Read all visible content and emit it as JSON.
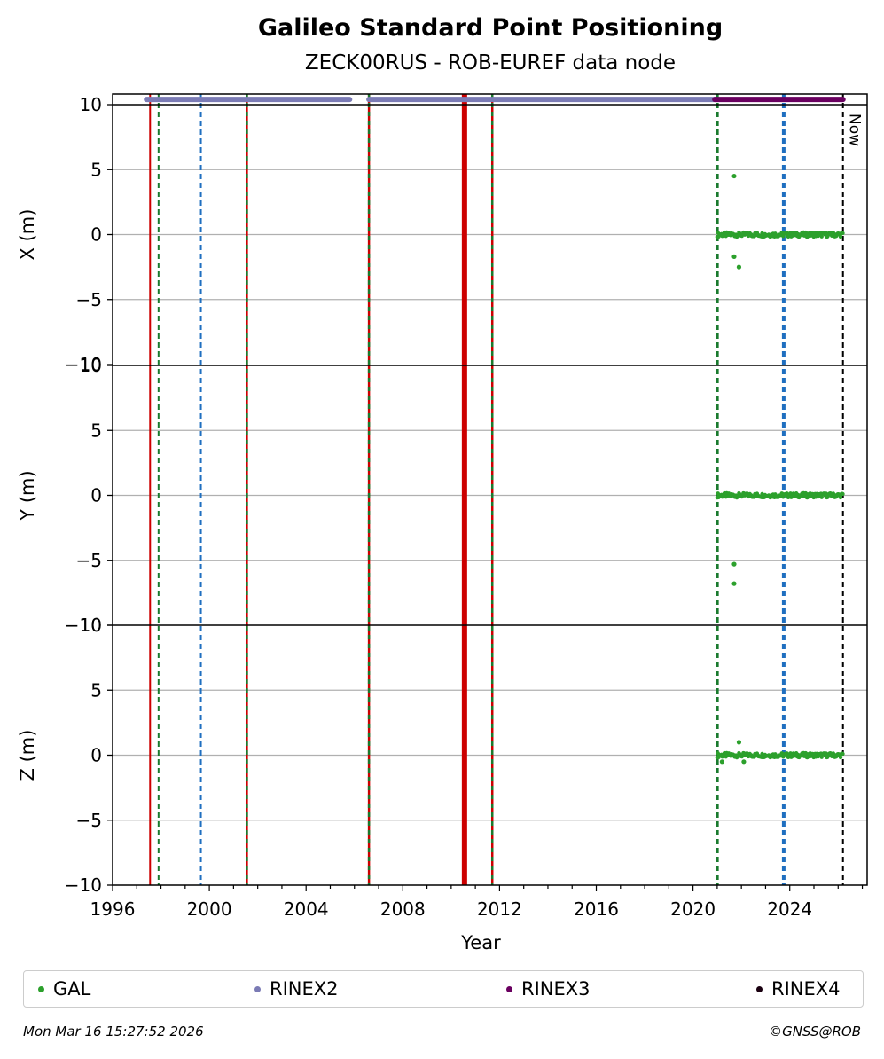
{
  "chart_data": {
    "type": "scatter",
    "title": "Galileo Standard Point Positioning",
    "subtitle": "ZECK00RUS - ROB-EUREF data node",
    "xlabel": "Year",
    "xlim": [
      1996.0,
      2027.2
    ],
    "x_ticks": [
      "1996",
      "2000",
      "2004",
      "2008",
      "2012",
      "2016",
      "2020",
      "2024"
    ],
    "x_tick_values": [
      1996,
      2000,
      2004,
      2008,
      2012,
      2016,
      2020,
      2024
    ],
    "now_label": "Now",
    "now_x": 2026.2,
    "grid": true,
    "panels": [
      {
        "id": "x",
        "ylabel": "X (m)",
        "ylim": [
          -10,
          10
        ],
        "y_ticks": [
          "10",
          "5",
          "0",
          "−5",
          "−10"
        ],
        "y_tick_values": [
          10,
          5,
          0,
          -5,
          -10
        ],
        "outliers": [
          [
            2021.7,
            4.5
          ],
          [
            2021.7,
            -1.7
          ],
          [
            2021.9,
            -2.5
          ]
        ]
      },
      {
        "id": "y",
        "ylabel": "Y (m)",
        "ylim": [
          -10,
          10
        ],
        "y_ticks": [
          "10",
          "5",
          "0",
          "−5",
          "−10"
        ],
        "y_tick_values": [
          10,
          5,
          0,
          -5,
          -10
        ],
        "outliers": [
          [
            2021.7,
            -5.3
          ],
          [
            2021.7,
            -6.8
          ]
        ]
      },
      {
        "id": "z",
        "ylabel": "Z (m)",
        "ylim": [
          -10,
          10
        ],
        "y_ticks": [
          "10",
          "5",
          "0",
          "−5",
          "−10"
        ],
        "y_tick_values": [
          10,
          5,
          0,
          -5,
          -10
        ],
        "outliers": [
          [
            2021.9,
            1.0
          ],
          [
            2021.2,
            -0.5
          ],
          [
            2022.1,
            -0.5
          ]
        ]
      }
    ],
    "gal_series": {
      "x_start": 2021.0,
      "x_end": 2026.2,
      "value": 0.0,
      "spread": 0.35
    },
    "rinex2_series": {
      "segments": [
        [
          1997.4,
          2005.8
        ],
        [
          2006.6,
          2020.9
        ]
      ],
      "y": 10.4
    },
    "rinex3_series": {
      "segments": [
        [
          2020.9,
          2026.2
        ]
      ],
      "y": 10.4
    },
    "events": [
      {
        "x": 1997.55,
        "color": "#cc0000",
        "style": "solid",
        "width": 2
      },
      {
        "x": 1997.9,
        "color": "#1a7a2e",
        "style": "dashed",
        "width": 2
      },
      {
        "x": 1999.65,
        "color": "#1f6fc0",
        "style": "dashed",
        "width": 2
      },
      {
        "x": 2001.55,
        "color": "#cc0000",
        "style": "redgreen",
        "width": 2.5
      },
      {
        "x": 2006.6,
        "color": "#cc0000",
        "style": "redgreen",
        "width": 2.5
      },
      {
        "x": 2010.55,
        "color": "#cc0000",
        "style": "solid",
        "width": 6
      },
      {
        "x": 2011.7,
        "color": "#cc0000",
        "style": "redgreen",
        "width": 2.5
      },
      {
        "x": 2021.0,
        "color": "#1a7a2e",
        "style": "dashed",
        "width": 3.5
      },
      {
        "x": 2023.75,
        "color": "#1f6fc0",
        "style": "dashed",
        "width": 4
      },
      {
        "x": 2026.2,
        "color": "#000000",
        "style": "dashed",
        "width": 2
      }
    ],
    "legend": [
      {
        "label": "GAL",
        "color": "#2ca02c"
      },
      {
        "label": "RINEX2",
        "color": "#7b7bb5"
      },
      {
        "label": "RINEX3",
        "color": "#6a0060"
      },
      {
        "label": "RINEX4",
        "color": "#1a0010"
      }
    ]
  },
  "footer": {
    "timestamp": "Mon Mar 16 15:27:52 2026",
    "credit": "©GNSS@ROB"
  }
}
